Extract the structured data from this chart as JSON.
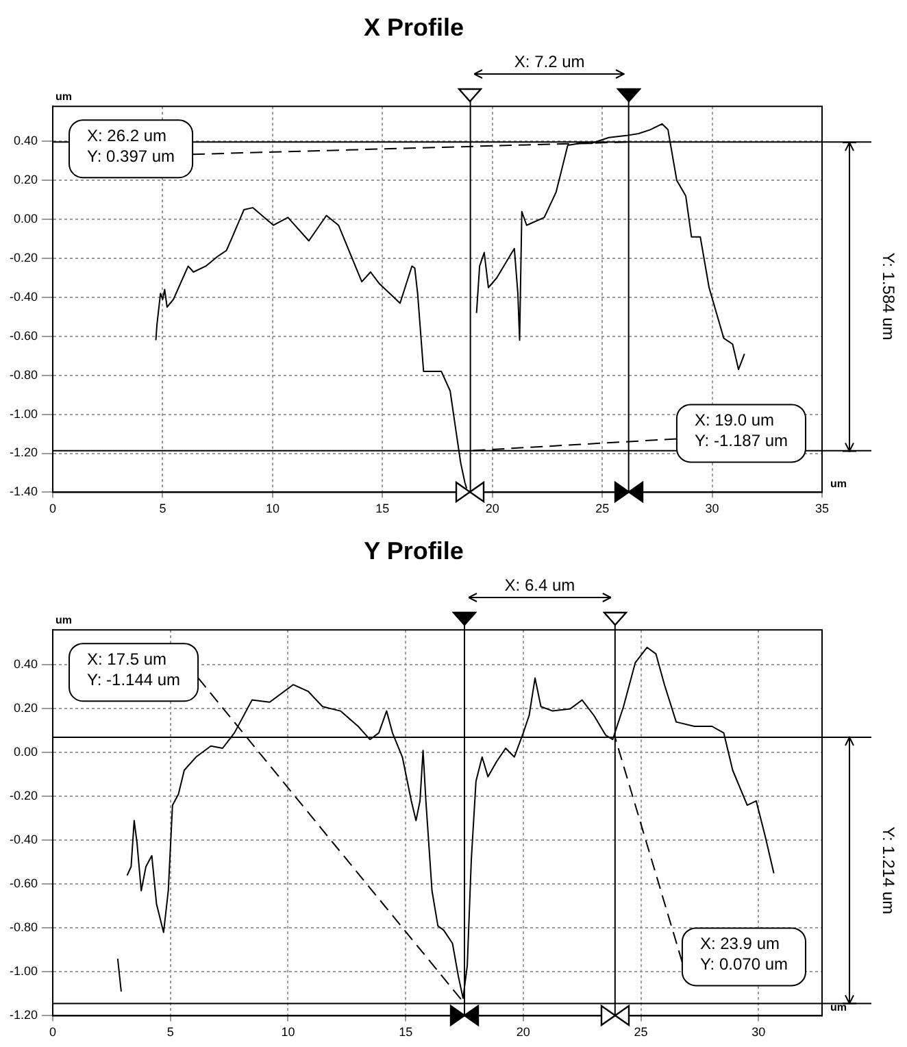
{
  "chart_data": [
    {
      "type": "line",
      "title": "X Profile",
      "xlabel": "um",
      "ylabel": "um",
      "marker": "none",
      "line_style": "solid",
      "legend": false,
      "grid": true,
      "series": [
        {
          "color": "#000000",
          "x": [
            4.69,
            4.74,
            4.9,
            5.0,
            5.09,
            5.2,
            5.49,
            6.16,
            6.4,
            6.96,
            7.5,
            7.9,
            8.17,
            8.7,
            9.1,
            10.04,
            10.7,
            11.65,
            12.45,
            13.0,
            14.06,
            14.46,
            14.86,
            15.8,
            16.34,
            16.47,
            16.6,
            16.87,
            17.68,
            18.08,
            18.35,
            18.56,
            18.75,
            18.83,
            19.0,
            19.28,
            19.42,
            19.63,
            19.82,
            20.2,
            20.89,
            21.0,
            21.16,
            21.24,
            21.34,
            21.56,
            22.36,
            22.9,
            23.43,
            23.97,
            24.5,
            25.3,
            26.1,
            26.65,
            27.18,
            27.72,
            27.99,
            28.39,
            28.8,
            29.06,
            29.46,
            29.86,
            30.53,
            30.93,
            31.2,
            31.47
          ],
          "values": [
            -0.62,
            -0.54,
            -0.38,
            -0.41,
            -0.36,
            -0.45,
            -0.41,
            -0.24,
            -0.27,
            -0.24,
            -0.19,
            -0.16,
            -0.09,
            0.05,
            0.06,
            -0.03,
            0.01,
            -0.11,
            0.02,
            -0.03,
            -0.32,
            -0.27,
            -0.33,
            -0.43,
            -0.24,
            -0.25,
            -0.38,
            -0.78,
            -0.78,
            -0.88,
            -1.09,
            -1.25,
            -1.35,
            -1.38,
            null,
            -0.48,
            -0.24,
            -0.17,
            -0.35,
            -0.3,
            -0.17,
            -0.15,
            -0.38,
            -0.62,
            0.04,
            -0.03,
            0.01,
            0.14,
            0.38,
            0.39,
            0.39,
            0.42,
            0.43,
            0.44,
            0.46,
            0.49,
            0.46,
            0.2,
            0.12,
            -0.09,
            -0.09,
            -0.35,
            -0.61,
            -0.64,
            -0.77,
            -0.69
          ]
        }
      ],
      "xlim": [
        0,
        35
      ],
      "xticks": [
        0,
        5,
        10,
        15,
        20,
        25,
        30,
        35
      ],
      "ylim": [
        -1.4,
        0.58
      ],
      "yticks": [
        {
          "value": -1.4,
          "label": "-1.40"
        },
        {
          "value": -1.2,
          "label": "-1.20"
        },
        {
          "value": -1.0,
          "label": "-1.00"
        },
        {
          "value": -0.8,
          "label": "-0.80"
        },
        {
          "value": -0.6,
          "label": "-0.60"
        },
        {
          "value": -0.4,
          "label": "-0.40"
        },
        {
          "value": -0.2,
          "label": "-0.20"
        },
        {
          "value": 0,
          "label": "0.00"
        },
        {
          "value": 0.2,
          "label": "0.20"
        },
        {
          "value": 0.4,
          "label": "0.40"
        }
      ],
      "ref_lines": [
        {
          "axis": "x",
          "value": 19.0
        },
        {
          "axis": "x",
          "value": 26.2
        },
        {
          "axis": "y",
          "value": 0.397
        },
        {
          "axis": "y",
          "value": -1.187
        }
      ],
      "annotations": [
        {
          "text": "X: 26.2 um\nY: 0.397 um",
          "x": 26.2,
          "y": 0.397
        },
        {
          "text": "X: 19.0 um\nY: -1.187 um",
          "x": 19.0,
          "y": -1.187
        },
        "X: 7.2 um",
        "Y: 1.584 um"
      ]
    },
    {
      "type": "line",
      "title": "Y Profile",
      "xlabel": "um",
      "ylabel": "um",
      "marker": "none",
      "line_style": "solid",
      "legend": false,
      "grid": true,
      "series": [
        {
          "color": "#000000",
          "x": [
            2.76,
            2.91,
            3.0,
            3.16,
            3.33,
            3.46,
            3.58,
            3.76,
            3.96,
            4.21,
            4.41,
            4.71,
            4.91,
            5.09,
            5.34,
            5.59,
            6.09,
            6.72,
            7.22,
            7.72,
            8.47,
            9.22,
            9.72,
            10.22,
            10.85,
            11.47,
            12.23,
            12.98,
            13.48,
            13.86,
            14.19,
            14.44,
            14.86,
            15.24,
            15.44,
            15.61,
            15.74,
            15.86,
            16.12,
            16.37,
            16.62,
            16.99,
            17.24,
            17.44,
            17.62,
            17.79,
            17.99,
            18.25,
            18.5,
            18.87,
            19.25,
            19.62,
            20.0,
            20.25,
            20.5,
            20.75,
            21.25,
            22.0,
            22.5,
            23.0,
            23.5,
            23.8,
            24.26,
            24.76,
            25.26,
            25.64,
            26.0,
            26.5,
            27.27,
            28.02,
            28.52,
            28.9,
            29.52,
            29.9,
            30.28,
            30.65
          ],
          "values": [
            -0.94,
            -1.09,
            null,
            -0.56,
            -0.52,
            -0.31,
            -0.41,
            -0.63,
            -0.52,
            -0.47,
            -0.69,
            -0.82,
            -0.63,
            -0.24,
            -0.19,
            -0.08,
            -0.02,
            0.03,
            0.02,
            0.09,
            0.24,
            0.23,
            0.27,
            0.31,
            0.28,
            0.21,
            0.19,
            0.12,
            0.06,
            0.09,
            0.19,
            0.09,
            -0.02,
            -0.22,
            -0.31,
            -0.22,
            0.01,
            -0.22,
            -0.63,
            -0.79,
            -0.81,
            -0.87,
            -1.02,
            -1.12,
            -0.97,
            -0.49,
            -0.13,
            -0.02,
            -0.11,
            -0.04,
            0.02,
            -0.02,
            0.09,
            0.17,
            0.34,
            0.21,
            0.19,
            0.2,
            0.24,
            0.17,
            0.08,
            0.06,
            0.21,
            0.41,
            0.48,
            0.45,
            0.31,
            0.14,
            0.12,
            0.12,
            0.09,
            -0.08,
            -0.24,
            -0.22,
            -0.38,
            -0.55
          ]
        }
      ],
      "xlim": [
        0,
        32.7
      ],
      "xticks": [
        0,
        5,
        10,
        15,
        20,
        25,
        30
      ],
      "ylim": [
        -1.2,
        0.56
      ],
      "yticks": [
        {
          "value": -1.2,
          "label": "-1.20"
        },
        {
          "value": -1.0,
          "label": "-1.00"
        },
        {
          "value": -0.8,
          "label": "-0.80"
        },
        {
          "value": -0.6,
          "label": "-0.60"
        },
        {
          "value": -0.4,
          "label": "-0.40"
        },
        {
          "value": -0.2,
          "label": "-0.20"
        },
        {
          "value": 0,
          "label": "0.00"
        },
        {
          "value": 0.2,
          "label": "0.20"
        },
        {
          "value": 0.4,
          "label": "0.40"
        }
      ],
      "ref_lines": [
        {
          "axis": "x",
          "value": 17.5
        },
        {
          "axis": "x",
          "value": 23.9
        },
        {
          "axis": "y",
          "value": -1.144
        },
        {
          "axis": "y",
          "value": 0.07
        }
      ],
      "annotations": [
        {
          "text": "X: 17.5 um\nY: -1.144 um",
          "x": 17.5,
          "y": -1.144
        },
        {
          "text": "X: 23.9 um\nY: 0.070 um",
          "x": 23.9,
          "y": 0.07
        },
        "X: 6.4 um",
        "Y: 1.214 um"
      ]
    }
  ]
}
